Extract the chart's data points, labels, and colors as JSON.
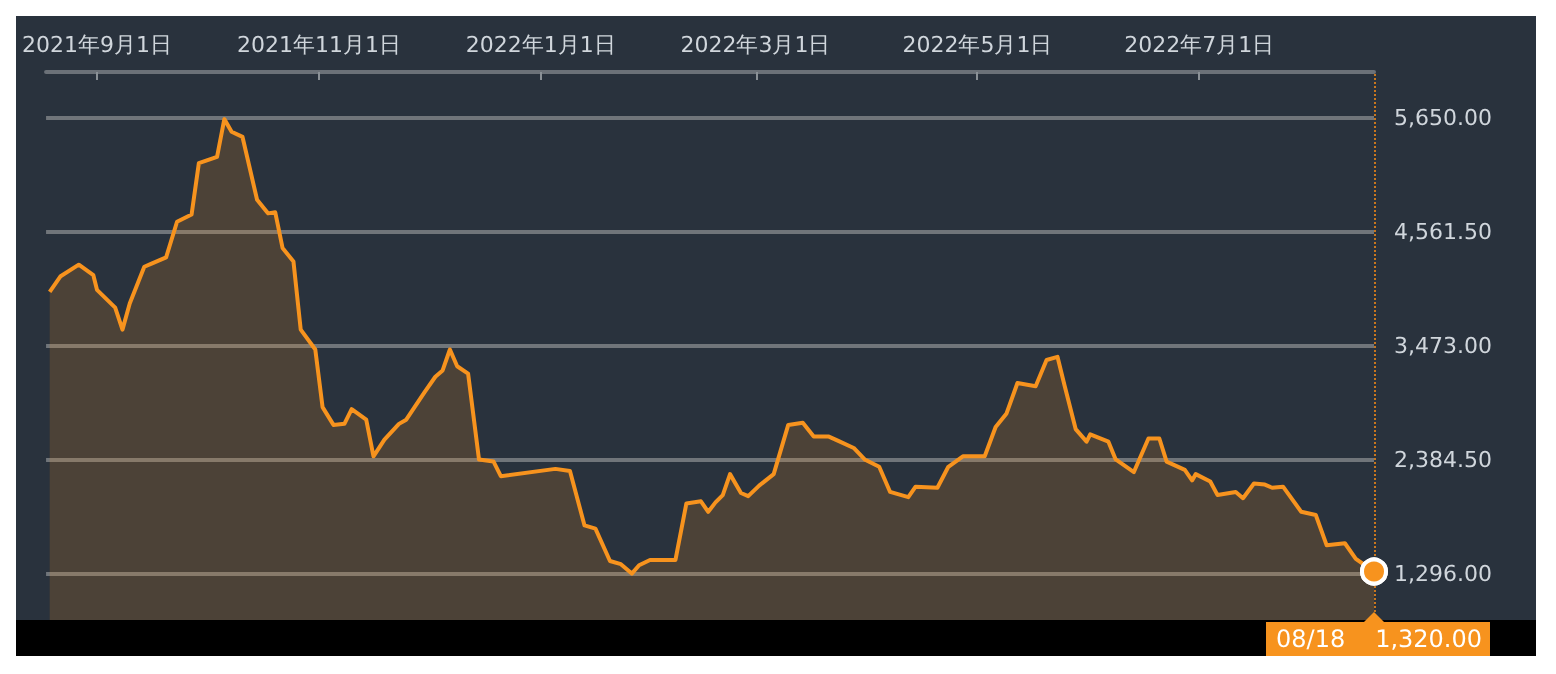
{
  "chart_data": {
    "type": "area",
    "x": [
      "2021-08-19",
      "2021-08-22",
      "2021-08-27",
      "2021-08-31",
      "2021-09-01",
      "2021-09-06",
      "2021-09-08",
      "2021-09-10",
      "2021-09-14",
      "2021-09-16",
      "2021-09-20",
      "2021-09-23",
      "2021-09-27",
      "2021-09-29",
      "2021-10-04",
      "2021-10-06",
      "2021-10-08",
      "2021-10-11",
      "2021-10-15",
      "2021-10-18",
      "2021-10-20",
      "2021-10-22",
      "2021-10-25",
      "2021-10-27",
      "2021-10-31",
      "2021-11-02",
      "2021-11-05",
      "2021-11-08",
      "2021-11-10",
      "2021-11-14",
      "2021-11-16",
      "2021-11-19",
      "2021-11-23",
      "2021-11-25",
      "2021-11-30",
      "2021-12-03",
      "2021-12-05",
      "2021-12-07",
      "2021-12-09",
      "2021-12-12",
      "2021-12-15",
      "2021-12-19",
      "2021-12-21",
      "2022-01-05",
      "2022-01-09",
      "2022-01-13",
      "2022-01-16",
      "2022-01-20",
      "2022-01-23",
      "2022-01-26",
      "2022-01-28",
      "2022-01-31",
      "2022-02-07",
      "2022-02-10",
      "2022-02-14",
      "2022-02-16",
      "2022-02-18",
      "2022-02-20",
      "2022-02-22",
      "2022-02-25",
      "2022-02-27",
      "2022-03-02",
      "2022-03-06",
      "2022-03-10",
      "2022-03-14",
      "2022-03-17",
      "2022-03-21",
      "2022-03-23",
      "2022-03-28",
      "2022-03-31",
      "2022-04-04",
      "2022-04-07",
      "2022-04-12",
      "2022-04-14",
      "2022-04-20",
      "2022-04-23",
      "2022-04-27",
      "2022-05-03",
      "2022-05-06",
      "2022-05-09",
      "2022-05-12",
      "2022-05-17",
      "2022-05-20",
      "2022-05-23",
      "2022-05-25",
      "2022-05-28",
      "2022-05-31",
      "2022-06-01",
      "2022-06-06",
      "2022-06-08",
      "2022-06-13",
      "2022-06-17",
      "2022-06-20",
      "2022-06-22",
      "2022-06-27",
      "2022-06-29",
      "2022-06-30",
      "2022-07-04",
      "2022-07-06",
      "2022-07-11",
      "2022-07-13",
      "2022-07-16",
      "2022-07-19",
      "2022-07-21",
      "2022-07-24",
      "2022-07-29",
      "2022-08-02",
      "2022-08-05",
      "2022-08-10",
      "2022-08-13",
      "2022-08-18"
    ],
    "series": [
      {
        "color": "#f7931e",
        "values": [
          3990,
          4140,
          4250,
          4150,
          4010,
          3840,
          3630,
          3880,
          4230,
          4260,
          4320,
          4660,
          4730,
          5220,
          5280,
          5640,
          5520,
          5470,
          4870,
          4740,
          4750,
          4410,
          4280,
          3630,
          3440,
          2890,
          2720,
          2730,
          2870,
          2770,
          2420,
          2580,
          2730,
          2770,
          3030,
          3180,
          3240,
          3440,
          3280,
          3210,
          2390,
          2370,
          2230,
          2300,
          2280,
          1760,
          1730,
          1420,
          1390,
          1300,
          1380,
          1430,
          1430,
          1970,
          1990,
          1890,
          1980,
          2050,
          2250,
          2070,
          2040,
          2140,
          2250,
          2720,
          2740,
          2610,
          2610,
          2580,
          2500,
          2390,
          2320,
          2080,
          2030,
          2130,
          2120,
          2320,
          2420,
          2420,
          2700,
          2830,
          3120,
          3090,
          3340,
          3370,
          3090,
          2680,
          2560,
          2630,
          2560,
          2390,
          2270,
          2590,
          2590,
          2370,
          2290,
          2190,
          2250,
          2180,
          2050,
          2080,
          2020,
          2160,
          2150,
          2120,
          2130,
          1890,
          1860,
          1570,
          1590,
          1440,
          1320
        ]
      }
    ],
    "xlim": [
      "2021-08-18",
      "2022-08-18"
    ],
    "xticks": [
      {
        "value": "2021-09-01",
        "label": "2021年9月1日"
      },
      {
        "value": "2021-11-01",
        "label": "2021年11月1日"
      },
      {
        "value": "2022-01-01",
        "label": "2022年1月1日"
      },
      {
        "value": "2022-03-01",
        "label": "2022年3月1日"
      },
      {
        "value": "2022-05-01",
        "label": "2022年5月1日"
      },
      {
        "value": "2022-07-01",
        "label": "2022年7月1日"
      }
    ],
    "ylim": [
      857,
      6090
    ],
    "yticks": [
      {
        "value": 1296,
        "label": "1,296.00"
      },
      {
        "value": 2384.5,
        "label": "2,384.50"
      },
      {
        "value": 3473,
        "label": "3,473.00"
      },
      {
        "value": 4561.5,
        "label": "4,561.50"
      },
      {
        "value": 5650,
        "label": "5,650.00"
      }
    ],
    "grid": "y",
    "ref_lines": [
      {
        "axis": "x",
        "value": "2022-08-18",
        "color": "#c8771e",
        "line_style": "dotted"
      }
    ],
    "annotations": [
      {
        "text": "08/18",
        "x": "2022-08-18",
        "y": 1320
      },
      {
        "text": "1,320.00",
        "x": "2022-08-18",
        "y": 1320
      }
    ]
  }
}
